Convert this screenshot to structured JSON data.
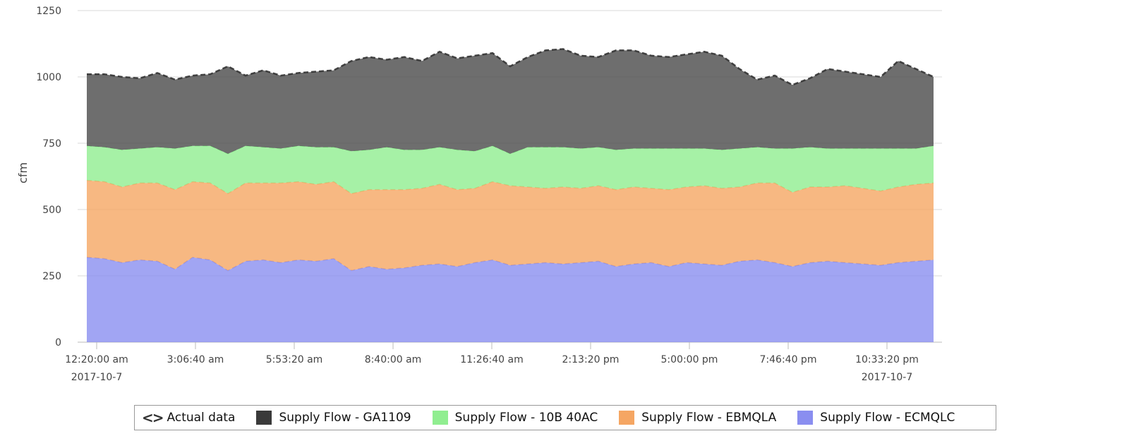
{
  "chart_data": {
    "type": "area",
    "stacked": true,
    "ylabel": "cfm",
    "ylim": [
      0,
      1250
    ],
    "yticks": [
      0,
      250,
      500,
      750,
      1000,
      1250
    ],
    "xlim_hours": [
      0,
      24
    ],
    "xticks": [
      {
        "label": "12:20:00 am",
        "hour": 0.333,
        "date": "2017-10-7"
      },
      {
        "label": "3:06:40 am",
        "hour": 3.111
      },
      {
        "label": "5:53:20 am",
        "hour": 5.889
      },
      {
        "label": "8:40:00 am",
        "hour": 8.667
      },
      {
        "label": "11:26:40 am",
        "hour": 11.444
      },
      {
        "label": "2:13:20 pm",
        "hour": 14.222
      },
      {
        "label": "5:00:00 pm",
        "hour": 17.0
      },
      {
        "label": "7:46:40 pm",
        "hour": 19.778
      },
      {
        "label": "10:33:20 pm",
        "hour": 22.556,
        "date": "2017-10-7"
      }
    ],
    "grid": true,
    "legend_position": "bottom",
    "series": [
      {
        "name": "Supply Flow - ECMQLC",
        "color": "#8a8ef0",
        "x": [
          0,
          0.5,
          1,
          1.5,
          2,
          2.5,
          3,
          3.5,
          4,
          4.5,
          5,
          5.5,
          6,
          6.5,
          7,
          7.5,
          8,
          8.5,
          9,
          9.5,
          10,
          10.5,
          11,
          11.5,
          12,
          12.5,
          13,
          13.5,
          14,
          14.5,
          15,
          15.5,
          16,
          16.5,
          17,
          17.5,
          18,
          18.5,
          19,
          19.5,
          20,
          20.5,
          21,
          21.5,
          22,
          22.5,
          23,
          23.5,
          24
        ],
        "values": [
          320,
          315,
          300,
          310,
          305,
          275,
          320,
          310,
          270,
          305,
          310,
          300,
          310,
          305,
          315,
          270,
          285,
          275,
          280,
          290,
          295,
          285,
          300,
          310,
          290,
          295,
          300,
          295,
          300,
          305,
          285,
          295,
          300,
          285,
          300,
          295,
          290,
          305,
          310,
          300,
          285,
          300,
          305,
          300,
          295,
          290,
          300,
          305,
          310
        ]
      },
      {
        "name": "Supply Flow - EBMQLA",
        "color": "#f5a663",
        "x": [
          0,
          0.5,
          1,
          1.5,
          2,
          2.5,
          3,
          3.5,
          4,
          4.5,
          5,
          5.5,
          6,
          6.5,
          7,
          7.5,
          8,
          8.5,
          9,
          9.5,
          10,
          10.5,
          11,
          11.5,
          12,
          12.5,
          13,
          13.5,
          14,
          14.5,
          15,
          15.5,
          16,
          16.5,
          17,
          17.5,
          18,
          18.5,
          19,
          19.5,
          20,
          20.5,
          21,
          21.5,
          22,
          22.5,
          23,
          23.5,
          24
        ],
        "values": [
          290,
          290,
          285,
          290,
          295,
          300,
          285,
          290,
          290,
          295,
          290,
          300,
          295,
          290,
          290,
          290,
          290,
          300,
          295,
          290,
          300,
          290,
          280,
          295,
          300,
          290,
          280,
          290,
          280,
          285,
          290,
          290,
          280,
          290,
          285,
          295,
          290,
          280,
          290,
          300,
          280,
          285,
          280,
          290,
          285,
          280,
          285,
          290,
          290
        ]
      },
      {
        "name": "Supply Flow - 10B 40AC",
        "color": "#90ee90",
        "x": [
          0,
          0.5,
          1,
          1.5,
          2,
          2.5,
          3,
          3.5,
          4,
          4.5,
          5,
          5.5,
          6,
          6.5,
          7,
          7.5,
          8,
          8.5,
          9,
          9.5,
          10,
          10.5,
          11,
          11.5,
          12,
          12.5,
          13,
          13.5,
          14,
          14.5,
          15,
          15.5,
          16,
          16.5,
          17,
          17.5,
          18,
          18.5,
          19,
          19.5,
          20,
          20.5,
          21,
          21.5,
          22,
          22.5,
          23,
          23.5,
          24
        ],
        "values": [
          130,
          130,
          140,
          130,
          135,
          155,
          135,
          140,
          150,
          140,
          135,
          130,
          135,
          140,
          130,
          160,
          150,
          160,
          150,
          145,
          140,
          150,
          140,
          135,
          120,
          150,
          155,
          150,
          150,
          145,
          150,
          145,
          150,
          155,
          145,
          140,
          145,
          145,
          135,
          130,
          165,
          150,
          145,
          140,
          150,
          160,
          145,
          135,
          140
        ]
      },
      {
        "name": "Supply Flow - GA1109",
        "color": "#555555",
        "x": [
          0,
          0.5,
          1,
          1.5,
          2,
          2.5,
          3,
          3.5,
          4,
          4.5,
          5,
          5.5,
          6,
          6.5,
          7,
          7.5,
          8,
          8.5,
          9,
          9.5,
          10,
          10.5,
          11,
          11.5,
          12,
          12.5,
          13,
          13.5,
          14,
          14.5,
          15,
          15.5,
          16,
          16.5,
          17,
          17.5,
          18,
          18.5,
          19,
          19.5,
          20,
          20.5,
          21,
          21.5,
          22,
          22.5,
          23,
          23.5,
          24
        ],
        "values": [
          270,
          275,
          275,
          265,
          280,
          260,
          265,
          270,
          330,
          265,
          290,
          275,
          275,
          285,
          290,
          340,
          350,
          330,
          350,
          335,
          360,
          345,
          360,
          350,
          330,
          340,
          365,
          370,
          350,
          340,
          375,
          370,
          350,
          345,
          355,
          365,
          355,
          300,
          255,
          275,
          240,
          260,
          300,
          290,
          280,
          270,
          330,
          300,
          260
        ]
      }
    ]
  },
  "legend": {
    "nav_icon": "code-arrows-icon",
    "nav_label": "Actual data",
    "items": [
      {
        "label": "Supply Flow - GA1109",
        "color": "#3a3a3a"
      },
      {
        "label": "Supply Flow - 10B 40AC",
        "color": "#90ee90"
      },
      {
        "label": "Supply Flow - EBMQLA",
        "color": "#f5a663"
      },
      {
        "label": "Supply Flow - ECMQLC",
        "color": "#8a8ef0"
      }
    ]
  }
}
